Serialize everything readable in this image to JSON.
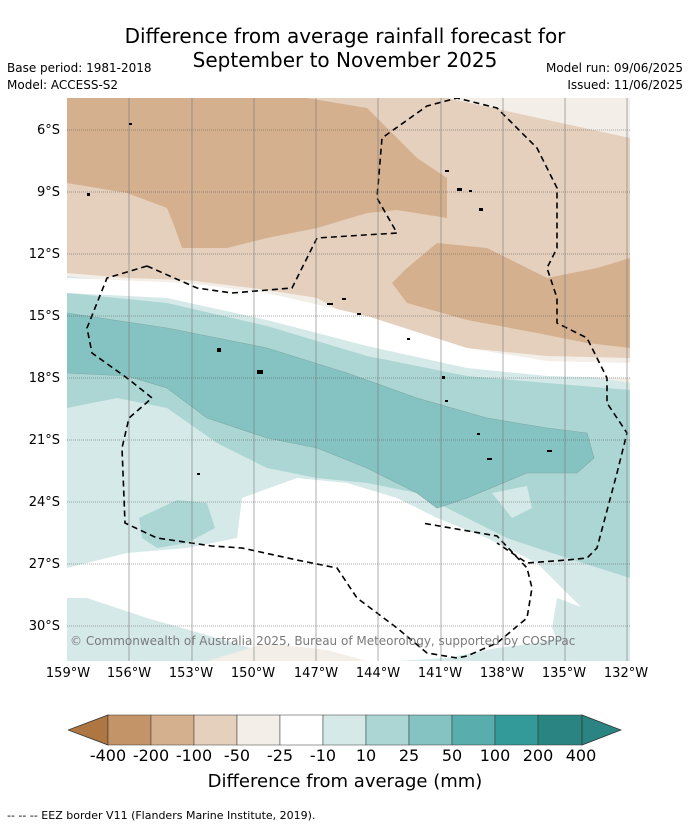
{
  "header": {
    "title_line1": "Difference from average rainfall forecast for",
    "title_line2": "September to November 2025",
    "base_period": "Base period: 1981-2018",
    "model": "Model: ACCESS-S2",
    "model_run": "Model run: 09/06/2025",
    "issued": "Issued: 11/06/2025"
  },
  "map": {
    "lat_ticks": [
      "6°S",
      "9°S",
      "12°S",
      "15°S",
      "18°S",
      "21°S",
      "24°S",
      "27°S",
      "30°S"
    ],
    "lon_ticks": [
      "159°W",
      "156°W",
      "153°W",
      "150°W",
      "147°W",
      "144°W",
      "141°W",
      "138°W",
      "135°W",
      "132°W"
    ],
    "credit": "© Commonwealth of Australia 2025, Bureau of Meteorology, supported by COSPPac",
    "colors": {
      "neg400": "#a86c35",
      "neg200": "#c29467",
      "neg100": "#d4b08f",
      "neg50": "#e5d0bd",
      "neg25": "#f3eee8",
      "neutral": "#ffffff",
      "pos10": "#d5e9e8",
      "pos25": "#acd6d4",
      "pos50": "#85c3c2",
      "pos100": "#5aadad",
      "pos200": "#339a99"
    }
  },
  "colorbar": {
    "labels": [
      "-400",
      "-200",
      "-100",
      "-50",
      "-25",
      "-10",
      "10",
      "25",
      "50",
      "100",
      "200",
      "400"
    ],
    "colors": [
      "#ae7742",
      "#c29467",
      "#d4b08f",
      "#e5d0bd",
      "#f3eee8",
      "#ffffff",
      "#d5e9e8",
      "#acd6d4",
      "#85c3c2",
      "#5aadad",
      "#339a99",
      "#2a8582"
    ],
    "title": "Difference from average (mm)"
  },
  "footer": {
    "legend": "--  --  -- EEZ border V11 (Flanders Marine Institute, 2019)."
  }
}
